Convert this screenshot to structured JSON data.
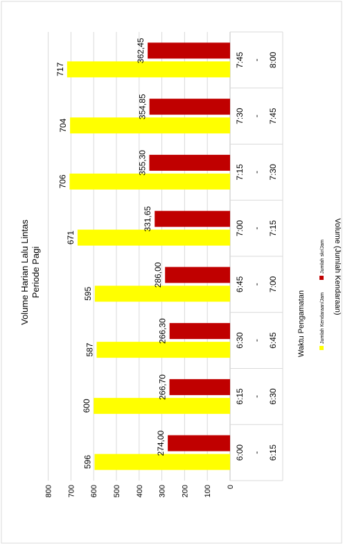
{
  "chart_data": {
    "type": "bar",
    "orientation": "horizontal-rotated",
    "title": "Volume Harian Lalu Lintas",
    "subtitle": "Periode Pagi",
    "xlabel": "Waktu Pengamatan",
    "ylabel": "Volume (Jumlah Kendaraan)",
    "ylim": [
      0,
      800
    ],
    "yticks": [
      0,
      100,
      200,
      300,
      400,
      500,
      600,
      700,
      800
    ],
    "grid": true,
    "legend_position": "bottom",
    "categories": [
      {
        "start": "6:00",
        "sep": "-",
        "end": "6:15"
      },
      {
        "start": "6:15",
        "sep": "-",
        "end": "6:30"
      },
      {
        "start": "6:30",
        "sep": "-",
        "end": "6:45"
      },
      {
        "start": "6:45",
        "sep": "-",
        "end": "7:00"
      },
      {
        "start": "7:00",
        "sep": "-",
        "end": "7:15"
      },
      {
        "start": "7:15",
        "sep": "-",
        "end": "7:30"
      },
      {
        "start": "7:30",
        "sep": "-",
        "end": "7:45"
      },
      {
        "start": "7:45",
        "sep": "-",
        "end": "8:00"
      }
    ],
    "series": [
      {
        "name": "Jumlah Kendaraan/Jam",
        "color": "#ffff00",
        "values": [
          596,
          600,
          587,
          595,
          671,
          706,
          704,
          717
        ],
        "labels": [
          "596",
          "600",
          "587",
          "595",
          "671",
          "706",
          "704",
          "717"
        ]
      },
      {
        "name": "Jumlah skr/Jam",
        "color": "#c00000",
        "values": [
          274.0,
          266.7,
          266.3,
          286.0,
          331.65,
          355.3,
          354.85,
          362.45
        ],
        "labels": [
          "274,00",
          "266,70",
          "266,30",
          "286,00",
          "331,65",
          "355,30",
          "354,85",
          "362,45"
        ]
      }
    ]
  }
}
